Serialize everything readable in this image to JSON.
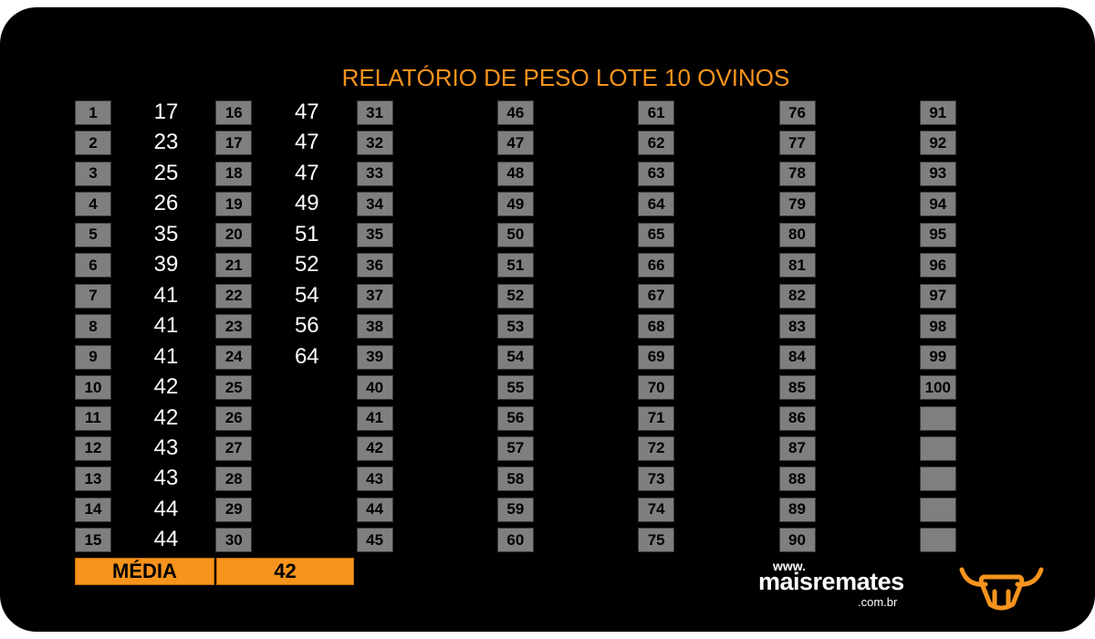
{
  "title": "RELATÓRIO DE PESO LOTE 10 OVINOS",
  "groups": [
    {
      "numbers": [
        1,
        2,
        3,
        4,
        5,
        6,
        7,
        8,
        9,
        10,
        11,
        12,
        13,
        14,
        15
      ],
      "weights": [
        17,
        23,
        25,
        26,
        35,
        39,
        41,
        41,
        41,
        42,
        42,
        43,
        43,
        44,
        44
      ]
    },
    {
      "numbers": [
        16,
        17,
        18,
        19,
        20,
        21,
        22,
        23,
        24,
        25,
        26,
        27,
        28,
        29,
        30
      ],
      "weights": [
        47,
        47,
        47,
        49,
        51,
        52,
        54,
        56,
        64
      ]
    },
    {
      "numbers": [
        31,
        32,
        33,
        34,
        35,
        36,
        37,
        38,
        39,
        40,
        41,
        42,
        43,
        44,
        45
      ],
      "weights": []
    },
    {
      "numbers": [
        46,
        47,
        48,
        49,
        50,
        51,
        52,
        53,
        54,
        55,
        56,
        57,
        58,
        59,
        60
      ],
      "weights": []
    },
    {
      "numbers": [
        61,
        62,
        63,
        64,
        65,
        66,
        67,
        68,
        69,
        70,
        71,
        72,
        73,
        74,
        75
      ],
      "weights": []
    },
    {
      "numbers": [
        76,
        77,
        78,
        79,
        80,
        81,
        82,
        83,
        84,
        85,
        86,
        87,
        88,
        89,
        90
      ],
      "weights": []
    },
    {
      "numbers": [
        91,
        92,
        93,
        94,
        95,
        96,
        97,
        98,
        99,
        100
      ],
      "weights": []
    }
  ],
  "average": {
    "label": "MÉDIA",
    "value": 42
  },
  "logo": {
    "prefix": "www.",
    "name": "maisremates",
    "suffix": ".com.br"
  }
}
